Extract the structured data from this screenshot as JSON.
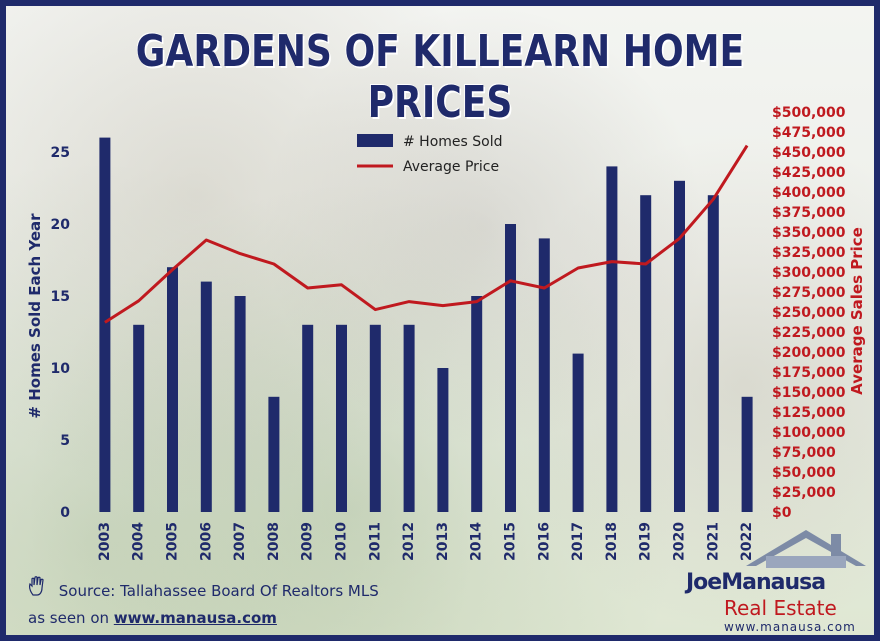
{
  "title": "GARDENS OF KILLEARN HOME PRICES",
  "chart_data": {
    "type": "bar+line",
    "categories": [
      "2003",
      "2004",
      "2005",
      "2006",
      "2007",
      "2008",
      "2009",
      "2010",
      "2011",
      "2012",
      "2013",
      "2014",
      "2015",
      "2016",
      "2017",
      "2018",
      "2019",
      "2020",
      "2021",
      "2022"
    ],
    "series": [
      {
        "name": "# Homes Sold",
        "type": "bar",
        "axis": "left",
        "color": "#1f2a6b",
        "values": [
          26,
          13,
          17,
          16,
          15,
          8,
          13,
          13,
          13,
          13,
          10,
          15,
          20,
          19,
          11,
          24,
          22,
          23,
          22,
          8
        ]
      },
      {
        "name": "Average Price",
        "type": "line",
        "axis": "right",
        "color": "#c0191f",
        "values": [
          237000,
          264000,
          303000,
          340000,
          323000,
          310000,
          280000,
          284000,
          253000,
          263000,
          258000,
          263000,
          289000,
          280000,
          305000,
          313000,
          310000,
          342000,
          391000,
          458000
        ]
      }
    ],
    "ylabel": "# Homes Sold Each Year",
    "y2label": "Average Sales Price",
    "ylim": [
      0,
      27.5
    ],
    "yticks": [
      "0",
      "5",
      "10",
      "15",
      "20",
      "25"
    ],
    "y2lim": [
      0,
      500000
    ],
    "y2ticks": [
      "$0",
      "$25,000",
      "$50,000",
      "$75,000",
      "$100,000",
      "$125,000",
      "$150,000",
      "$175,000",
      "$200,000",
      "$225,000",
      "$250,000",
      "$275,000",
      "$300,000",
      "$325,000",
      "$350,000",
      "$375,000",
      "$400,000",
      "$425,000",
      "$450,000",
      "$475,000",
      "$500,000"
    ],
    "legend": [
      "# Homes Sold",
      "Average Price"
    ],
    "legend_position": "top-center",
    "grid": false
  },
  "footer": {
    "source": "Source: Tallahassee Board Of Realtors MLS",
    "seen_prefix": "as seen on",
    "seen_url": "www.manausa.com"
  },
  "logo": {
    "first": "Joe",
    "last": "Manausa",
    "line2": "Real Estate",
    "url": "www.manausa.com"
  },
  "colors": {
    "navy": "#1f2a6b",
    "red": "#c0191f"
  }
}
